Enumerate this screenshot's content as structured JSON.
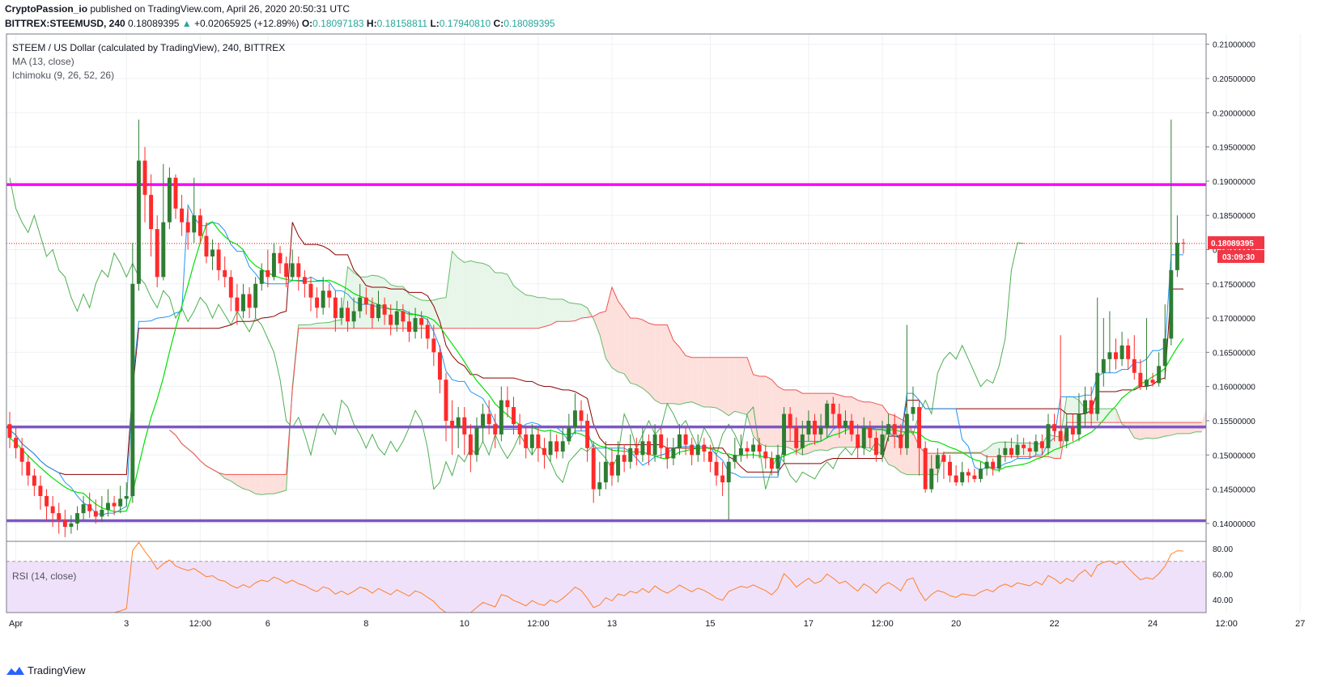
{
  "header": {
    "line1_author": "CryptoPassion_io",
    "line1_rest": " published on TradingView.com, April 26, 2020 20:50:31 UTC",
    "symbol": "BITTREX:STEEMUSD, 240",
    "price": "0.18089395",
    "change": "+0.02065925 (+12.89%)",
    "o_label": "O:",
    "o": "0.18097183",
    "h_label": "H:",
    "h": "0.18158811",
    "l_label": "L:",
    "l": "0.17940810",
    "c_label": "C:",
    "c": "0.18089395"
  },
  "legend": {
    "title": "STEEM / US Dollar (calculated by TradingView), 240, BITTREX",
    "ma": "MA (13, close)",
    "ichimoku": "Ichimoku (9, 26, 52, 26)",
    "rsi": "RSI (14, close)"
  },
  "price_tag": "0.18089395",
  "countdown": "03:09:30",
  "brand": "TradingView",
  "colors": {
    "up": "#2e7d32",
    "down": "#ff2a2a",
    "resistance": "#ff00ff",
    "support": "#7e57c2",
    "ma": "#00e000",
    "tenkan": "#2196f3",
    "kijun": "#8b0000",
    "lagging": "#4caf50",
    "cloud_bull": "#e8f5e9",
    "cloud_bear": "#fde0dc",
    "rsi_line": "#ff7f27",
    "rsi_band": "#f0e1fa"
  },
  "chart_data": {
    "type": "candlestick",
    "ylim": [
      0.1375,
      0.2115
    ],
    "yticks": [
      "0.21000000",
      "0.20500000",
      "0.20000000",
      "0.19500000",
      "0.19000000",
      "0.18500000",
      "0.18000000",
      "0.17500000",
      "0.17000000",
      "0.16500000",
      "0.16000000",
      "0.15500000",
      "0.15000000",
      "0.14500000",
      "0.14000000"
    ],
    "xticks": [
      {
        "label": "Apr",
        "i": 1
      },
      {
        "label": "3",
        "i": 19
      },
      {
        "label": "12:00",
        "i": 31
      },
      {
        "label": "6",
        "i": 42
      },
      {
        "label": "8",
        "i": 58
      },
      {
        "label": "10",
        "i": 74
      },
      {
        "label": "12:00",
        "i": 86
      },
      {
        "label": "13",
        "i": 98
      },
      {
        "label": "15",
        "i": 114
      },
      {
        "label": "17",
        "i": 130
      },
      {
        "label": "12:00",
        "i": 142
      },
      {
        "label": "20",
        "i": 154
      },
      {
        "label": "22",
        "i": 170
      },
      {
        "label": "24",
        "i": 186
      },
      {
        "label": "12:00",
        "i": 198
      },
      {
        "label": "27",
        "i": 210
      }
    ],
    "resistance": 0.1895,
    "support_upper": 0.1541,
    "support_lower": 0.1404,
    "current_price": 0.18089395,
    "candles": [
      [
        0.1545,
        0.1525,
        0.1563,
        0.151
      ],
      [
        0.1525,
        0.151,
        0.154,
        0.1495
      ],
      [
        0.151,
        0.149,
        0.1525,
        0.147
      ],
      [
        0.149,
        0.147,
        0.15,
        0.1455
      ],
      [
        0.147,
        0.1455,
        0.148,
        0.144
      ],
      [
        0.1455,
        0.144,
        0.147,
        0.142
      ],
      [
        0.144,
        0.1425,
        0.145,
        0.1405
      ],
      [
        0.1425,
        0.1415,
        0.144,
        0.1395
      ],
      [
        0.1415,
        0.1405,
        0.143,
        0.1385
      ],
      [
        0.1405,
        0.1395,
        0.142,
        0.138
      ],
      [
        0.1395,
        0.14,
        0.1412,
        0.1385
      ],
      [
        0.14,
        0.1415,
        0.1425,
        0.139
      ],
      [
        0.1415,
        0.1428,
        0.144,
        0.1405
      ],
      [
        0.1428,
        0.1418,
        0.1445,
        0.1408
      ],
      [
        0.1418,
        0.141,
        0.1435,
        0.14
      ],
      [
        0.141,
        0.142,
        0.144,
        0.1402
      ],
      [
        0.142,
        0.143,
        0.145,
        0.141
      ],
      [
        0.143,
        0.1425,
        0.144,
        0.1412
      ],
      [
        0.1425,
        0.1436,
        0.1455,
        0.1415
      ],
      [
        0.1436,
        0.144,
        0.146,
        0.1425
      ],
      [
        0.144,
        0.175,
        0.181,
        0.143
      ],
      [
        0.175,
        0.193,
        0.199,
        0.174
      ],
      [
        0.193,
        0.188,
        0.195,
        0.184
      ],
      [
        0.188,
        0.183,
        0.191,
        0.179
      ],
      [
        0.183,
        0.176,
        0.185,
        0.1745
      ],
      [
        0.176,
        0.184,
        0.1925,
        0.1755
      ],
      [
        0.184,
        0.1905,
        0.192,
        0.183
      ],
      [
        0.1905,
        0.186,
        0.191,
        0.1845
      ],
      [
        0.186,
        0.184,
        0.188,
        0.182
      ],
      [
        0.184,
        0.1825,
        0.186,
        0.18
      ],
      [
        0.1825,
        0.185,
        0.1905,
        0.181
      ],
      [
        0.185,
        0.182,
        0.186,
        0.181
      ],
      [
        0.182,
        0.179,
        0.184,
        0.178
      ],
      [
        0.179,
        0.18,
        0.1815,
        0.177
      ],
      [
        0.18,
        0.177,
        0.181,
        0.1755
      ],
      [
        0.177,
        0.176,
        0.179,
        0.1745
      ],
      [
        0.176,
        0.173,
        0.177,
        0.171
      ],
      [
        0.173,
        0.171,
        0.175,
        0.169
      ],
      [
        0.171,
        0.1735,
        0.175,
        0.17
      ],
      [
        0.1735,
        0.1715,
        0.1745,
        0.17
      ],
      [
        0.1715,
        0.175,
        0.176,
        0.17
      ],
      [
        0.175,
        0.177,
        0.178,
        0.174
      ],
      [
        0.177,
        0.176,
        0.18,
        0.1745
      ],
      [
        0.176,
        0.1795,
        0.181,
        0.1755
      ],
      [
        0.1795,
        0.178,
        0.1805,
        0.1765
      ],
      [
        0.178,
        0.176,
        0.179,
        0.1745
      ],
      [
        0.176,
        0.178,
        0.18,
        0.1755
      ],
      [
        0.178,
        0.176,
        0.179,
        0.174
      ],
      [
        0.176,
        0.175,
        0.177,
        0.173
      ],
      [
        0.175,
        0.173,
        0.176,
        0.171
      ],
      [
        0.173,
        0.1715,
        0.1745,
        0.17
      ],
      [
        0.1715,
        0.174,
        0.176,
        0.1705
      ],
      [
        0.174,
        0.173,
        0.175,
        0.1715
      ],
      [
        0.173,
        0.17,
        0.174,
        0.168
      ],
      [
        0.17,
        0.1715,
        0.173,
        0.169
      ],
      [
        0.1715,
        0.1695,
        0.1725,
        0.168
      ],
      [
        0.1695,
        0.171,
        0.173,
        0.1685
      ],
      [
        0.171,
        0.173,
        0.175,
        0.17
      ],
      [
        0.173,
        0.172,
        0.1745,
        0.1705
      ],
      [
        0.172,
        0.17,
        0.173,
        0.1685
      ],
      [
        0.17,
        0.172,
        0.174,
        0.1695
      ],
      [
        0.172,
        0.1705,
        0.173,
        0.169
      ],
      [
        0.1705,
        0.169,
        0.172,
        0.1675
      ],
      [
        0.169,
        0.171,
        0.1725,
        0.168
      ],
      [
        0.171,
        0.1695,
        0.172,
        0.168
      ],
      [
        0.1695,
        0.168,
        0.171,
        0.1665
      ],
      [
        0.168,
        0.17,
        0.1715,
        0.167
      ],
      [
        0.17,
        0.169,
        0.171,
        0.167
      ],
      [
        0.169,
        0.167,
        0.17,
        0.1655
      ],
      [
        0.167,
        0.165,
        0.169,
        0.163
      ],
      [
        0.165,
        0.161,
        0.166,
        0.159
      ],
      [
        0.161,
        0.155,
        0.162,
        0.152
      ],
      [
        0.155,
        0.154,
        0.158,
        0.15
      ],
      [
        0.154,
        0.1555,
        0.157,
        0.151
      ],
      [
        0.1555,
        0.153,
        0.157,
        0.15
      ],
      [
        0.153,
        0.15,
        0.1545,
        0.1475
      ],
      [
        0.15,
        0.154,
        0.1555,
        0.149
      ],
      [
        0.154,
        0.156,
        0.1575,
        0.152
      ],
      [
        0.156,
        0.1545,
        0.158,
        0.153
      ],
      [
        0.1545,
        0.153,
        0.156,
        0.151
      ],
      [
        0.153,
        0.158,
        0.16,
        0.152
      ],
      [
        0.158,
        0.157,
        0.16,
        0.1555
      ],
      [
        0.157,
        0.1545,
        0.1585,
        0.153
      ],
      [
        0.1545,
        0.153,
        0.156,
        0.1515
      ],
      [
        0.153,
        0.151,
        0.154,
        0.1495
      ],
      [
        0.151,
        0.153,
        0.1545,
        0.15
      ],
      [
        0.153,
        0.151,
        0.154,
        0.149
      ],
      [
        0.151,
        0.15,
        0.1525,
        0.148
      ],
      [
        0.15,
        0.152,
        0.1535,
        0.149
      ],
      [
        0.152,
        0.1505,
        0.153,
        0.1495
      ],
      [
        0.1505,
        0.152,
        0.154,
        0.1495
      ],
      [
        0.152,
        0.154,
        0.156,
        0.1515
      ],
      [
        0.154,
        0.1565,
        0.159,
        0.153
      ],
      [
        0.1565,
        0.155,
        0.158,
        0.1535
      ],
      [
        0.155,
        0.151,
        0.156,
        0.149
      ],
      [
        0.151,
        0.145,
        0.152,
        0.143
      ],
      [
        0.145,
        0.146,
        0.149,
        0.144
      ],
      [
        0.146,
        0.149,
        0.152,
        0.145
      ],
      [
        0.149,
        0.147,
        0.151,
        0.1455
      ],
      [
        0.147,
        0.15,
        0.152,
        0.146
      ],
      [
        0.15,
        0.149,
        0.1515,
        0.1475
      ],
      [
        0.149,
        0.151,
        0.153,
        0.148
      ],
      [
        0.151,
        0.15,
        0.1525,
        0.1485
      ],
      [
        0.15,
        0.152,
        0.154,
        0.149
      ],
      [
        0.152,
        0.15,
        0.153,
        0.1485
      ],
      [
        0.15,
        0.153,
        0.1545,
        0.149
      ],
      [
        0.153,
        0.151,
        0.154,
        0.1495
      ],
      [
        0.151,
        0.1495,
        0.1525,
        0.148
      ],
      [
        0.1495,
        0.151,
        0.1525,
        0.1485
      ],
      [
        0.151,
        0.153,
        0.1545,
        0.15
      ],
      [
        0.153,
        0.1515,
        0.154,
        0.15
      ],
      [
        0.1515,
        0.15,
        0.1525,
        0.1485
      ],
      [
        0.15,
        0.1515,
        0.153,
        0.149
      ],
      [
        0.1515,
        0.1505,
        0.1525,
        0.149
      ],
      [
        0.1505,
        0.149,
        0.1515,
        0.1475
      ],
      [
        0.149,
        0.147,
        0.15,
        0.1455
      ],
      [
        0.147,
        0.146,
        0.149,
        0.144
      ],
      [
        0.146,
        0.149,
        0.15,
        0.1405
      ],
      [
        0.149,
        0.15,
        0.1525,
        0.148
      ],
      [
        0.15,
        0.151,
        0.153,
        0.149
      ],
      [
        0.151,
        0.1505,
        0.152,
        0.1495
      ],
      [
        0.1505,
        0.1515,
        0.1525,
        0.1495
      ],
      [
        0.1515,
        0.1505,
        0.1525,
        0.1495
      ],
      [
        0.1505,
        0.1495,
        0.1515,
        0.148
      ],
      [
        0.1495,
        0.148,
        0.1505,
        0.147
      ],
      [
        0.148,
        0.15,
        0.1515,
        0.147
      ],
      [
        0.15,
        0.156,
        0.157,
        0.149
      ],
      [
        0.156,
        0.154,
        0.157,
        0.152
      ],
      [
        0.154,
        0.151,
        0.1555,
        0.15
      ],
      [
        0.151,
        0.153,
        0.155,
        0.15
      ],
      [
        0.153,
        0.155,
        0.1565,
        0.152
      ],
      [
        0.155,
        0.153,
        0.156,
        0.1515
      ],
      [
        0.153,
        0.154,
        0.156,
        0.152
      ],
      [
        0.154,
        0.1575,
        0.158,
        0.1525
      ],
      [
        0.1575,
        0.156,
        0.1585,
        0.154
      ],
      [
        0.156,
        0.154,
        0.1575,
        0.1525
      ],
      [
        0.154,
        0.155,
        0.1565,
        0.153
      ],
      [
        0.155,
        0.153,
        0.156,
        0.152
      ],
      [
        0.153,
        0.151,
        0.1545,
        0.1495
      ],
      [
        0.151,
        0.154,
        0.1555,
        0.15
      ],
      [
        0.154,
        0.1525,
        0.155,
        0.151
      ],
      [
        0.1525,
        0.15,
        0.1535,
        0.149
      ],
      [
        0.15,
        0.153,
        0.155,
        0.149
      ],
      [
        0.153,
        0.1545,
        0.156,
        0.152
      ],
      [
        0.1545,
        0.153,
        0.156,
        0.151
      ],
      [
        0.153,
        0.151,
        0.1545,
        0.15
      ],
      [
        0.151,
        0.156,
        0.169,
        0.15
      ],
      [
        0.156,
        0.157,
        0.16,
        0.155
      ],
      [
        0.157,
        0.151,
        0.158,
        0.147
      ],
      [
        0.151,
        0.145,
        0.152,
        0.1445
      ],
      [
        0.145,
        0.148,
        0.15,
        0.1445
      ],
      [
        0.148,
        0.15,
        0.151,
        0.146
      ],
      [
        0.15,
        0.149,
        0.1505,
        0.1465
      ],
      [
        0.149,
        0.147,
        0.15,
        0.146
      ],
      [
        0.147,
        0.146,
        0.1485,
        0.1455
      ],
      [
        0.146,
        0.1475,
        0.149,
        0.1455
      ],
      [
        0.1475,
        0.147,
        0.148,
        0.146
      ],
      [
        0.147,
        0.1465,
        0.148,
        0.146
      ],
      [
        0.1465,
        0.148,
        0.149,
        0.146
      ],
      [
        0.148,
        0.149,
        0.15,
        0.147
      ],
      [
        0.149,
        0.148,
        0.1495,
        0.147
      ],
      [
        0.148,
        0.15,
        0.151,
        0.1475
      ],
      [
        0.15,
        0.151,
        0.152,
        0.149
      ],
      [
        0.151,
        0.15,
        0.1525,
        0.1495
      ],
      [
        0.15,
        0.1515,
        0.153,
        0.1495
      ],
      [
        0.1515,
        0.151,
        0.1525,
        0.15
      ],
      [
        0.151,
        0.1505,
        0.152,
        0.1495
      ],
      [
        0.1505,
        0.152,
        0.153,
        0.15
      ],
      [
        0.152,
        0.151,
        0.153,
        0.15
      ],
      [
        0.151,
        0.1545,
        0.156,
        0.15
      ],
      [
        0.1545,
        0.1535,
        0.156,
        0.152
      ],
      [
        0.1535,
        0.152,
        0.1675,
        0.151
      ],
      [
        0.152,
        0.154,
        0.156,
        0.151
      ],
      [
        0.154,
        0.153,
        0.156,
        0.152
      ],
      [
        0.153,
        0.156,
        0.159,
        0.152
      ],
      [
        0.156,
        0.158,
        0.16,
        0.154
      ],
      [
        0.158,
        0.156,
        0.16,
        0.154
      ],
      [
        0.156,
        0.162,
        0.173,
        0.155
      ],
      [
        0.162,
        0.164,
        0.17,
        0.16
      ],
      [
        0.164,
        0.165,
        0.171,
        0.162
      ],
      [
        0.165,
        0.164,
        0.167,
        0.1625
      ],
      [
        0.164,
        0.166,
        0.168,
        0.163
      ],
      [
        0.166,
        0.164,
        0.167,
        0.1625
      ],
      [
        0.164,
        0.162,
        0.1675,
        0.161
      ],
      [
        0.162,
        0.16,
        0.164,
        0.1595
      ],
      [
        0.16,
        0.161,
        0.17,
        0.1595
      ],
      [
        0.161,
        0.1605,
        0.162,
        0.16
      ],
      [
        0.1605,
        0.163,
        0.165,
        0.16
      ],
      [
        0.163,
        0.167,
        0.172,
        0.161
      ],
      [
        0.167,
        0.177,
        0.199,
        0.166
      ],
      [
        0.177,
        0.181,
        0.185,
        0.176
      ],
      [
        0.181,
        0.1809,
        0.1816,
        0.1794
      ]
    ],
    "rsi": {
      "ylim": [
        30,
        85
      ],
      "ticks": [
        "80.00",
        "60.00",
        "40.00"
      ],
      "upper": 70,
      "lower": 30
    }
  }
}
